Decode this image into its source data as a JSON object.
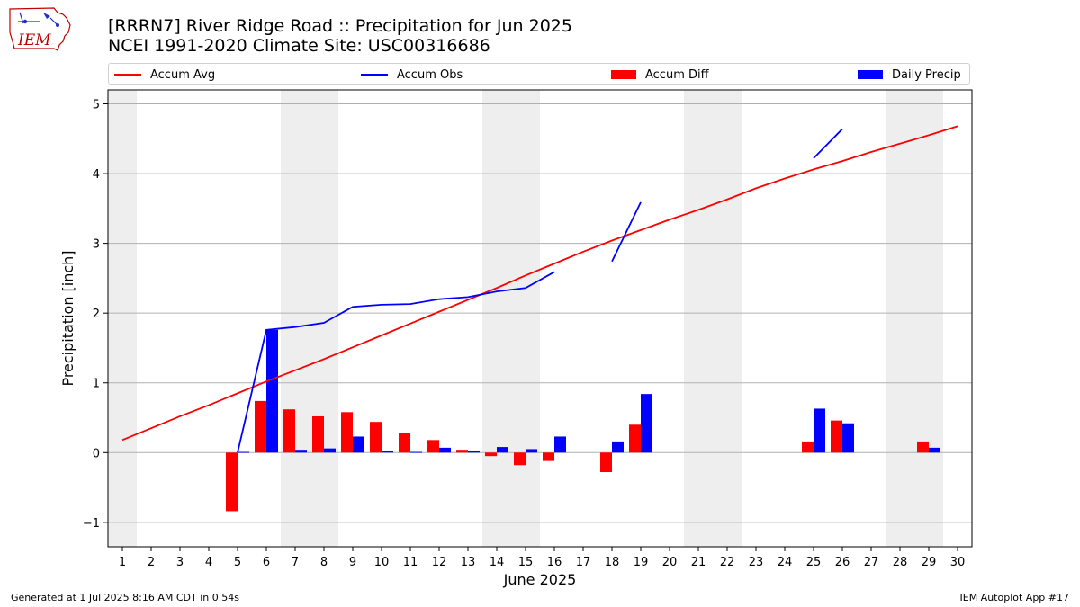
{
  "logo": {
    "text": "IEM"
  },
  "header": {
    "title_line1": "[RRRN7] River Ridge Road :: Precipitation for Jun 2025",
    "title_line2": "NCEI 1991-2020 Climate Site: USC00316686"
  },
  "legend": {
    "items": [
      {
        "label": "Accum Avg",
        "kind": "line",
        "color": "#ff0000"
      },
      {
        "label": "Accum Obs",
        "kind": "line",
        "color": "#0000ff"
      },
      {
        "label": "Accum Diff",
        "kind": "bar",
        "color": "#ff0000"
      },
      {
        "label": "Daily Precip",
        "kind": "bar",
        "color": "#0000ff"
      }
    ]
  },
  "footer": {
    "left": "Generated at 1 Jul 2025 8:16 AM CDT in 0.54s",
    "right": "IEM Autoplot App #17"
  },
  "chart_data": {
    "type": "bar",
    "xlabel": "June 2025",
    "ylabel": "Precipitation [inch]",
    "ylim": [
      -1.35,
      5.2
    ],
    "yticks": [
      -1,
      0,
      1,
      2,
      3,
      4,
      5
    ],
    "ytick_labels": [
      "−1",
      "0",
      "1",
      "2",
      "3",
      "4",
      "5"
    ],
    "grid": true,
    "legend_position": "top",
    "days": [
      1,
      2,
      3,
      4,
      5,
      6,
      7,
      8,
      9,
      10,
      11,
      12,
      13,
      14,
      15,
      16,
      17,
      18,
      19,
      20,
      21,
      22,
      23,
      24,
      25,
      26,
      27,
      28,
      29,
      30
    ],
    "weekend_bands": [
      [
        1,
        1
      ],
      [
        7,
        8
      ],
      [
        14,
        15
      ],
      [
        21,
        22
      ],
      [
        28,
        29
      ]
    ],
    "accum_avg": [
      0.18,
      0.35,
      0.52,
      0.68,
      0.85,
      1.02,
      1.18,
      1.34,
      1.51,
      1.68,
      1.85,
      2.02,
      2.19,
      2.36,
      2.54,
      2.71,
      2.88,
      3.04,
      3.19,
      3.34,
      3.48,
      3.63,
      3.79,
      3.93,
      4.06,
      4.18,
      4.31,
      4.43,
      4.55,
      4.68
    ],
    "accum_obs": [
      null,
      null,
      null,
      null,
      0.0,
      1.76,
      1.8,
      1.86,
      2.09,
      2.12,
      2.13,
      2.2,
      2.23,
      2.31,
      2.36,
      2.59,
      null,
      2.74,
      3.59,
      null,
      null,
      null,
      null,
      null,
      4.22,
      4.64,
      null,
      null,
      null,
      null
    ],
    "accum_diff": [
      null,
      null,
      null,
      null,
      -0.84,
      0.74,
      0.62,
      0.52,
      0.58,
      0.44,
      0.28,
      0.18,
      0.04,
      -0.05,
      -0.18,
      -0.12,
      null,
      -0.28,
      0.4,
      null,
      null,
      null,
      null,
      null,
      0.16,
      0.46,
      null,
      null,
      0.16,
      null
    ],
    "daily_precip": [
      null,
      null,
      null,
      null,
      0.01,
      1.76,
      0.04,
      0.06,
      0.23,
      0.03,
      0.01,
      0.07,
      0.03,
      0.08,
      0.05,
      0.23,
      null,
      0.16,
      0.84,
      null,
      null,
      null,
      null,
      null,
      0.63,
      0.42,
      null,
      null,
      0.07,
      null
    ],
    "series_colors": {
      "accum_avg": "#ff0000",
      "accum_obs": "#0000ff",
      "accum_diff": "#ff0000",
      "daily_precip": "#0000ff"
    }
  }
}
